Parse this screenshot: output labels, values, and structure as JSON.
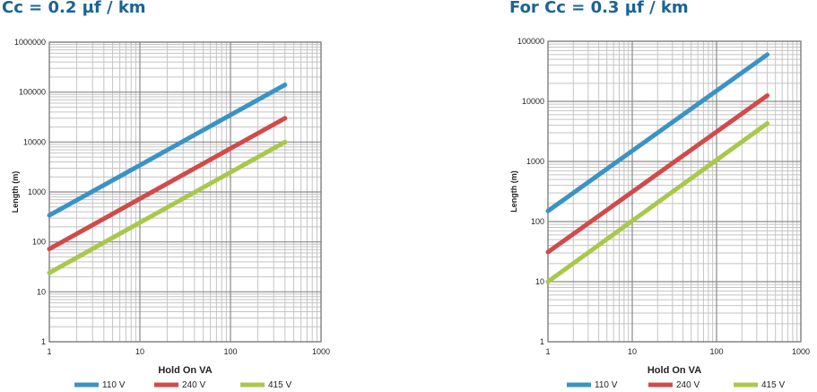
{
  "chart_data": [
    {
      "type": "line",
      "title": "Cc = 0.2 µf / km",
      "xlabel": "Hold On VA",
      "ylabel": "Length (m)",
      "x_scale": "log",
      "y_scale": "log",
      "xlim": [
        1,
        1000
      ],
      "ylim": [
        1,
        1000000
      ],
      "x_ticks": [
        "1",
        "10",
        "100",
        "1000"
      ],
      "y_ticks": [
        "1",
        "10",
        "100",
        "1000",
        "10000",
        "100000",
        "1000000"
      ],
      "grid": true,
      "legend_position": "bottom",
      "series": [
        {
          "name": "110 V",
          "color": "#3a93c4",
          "x": [
            1,
            400
          ],
          "y": [
            340,
            140000
          ]
        },
        {
          "name": "240 V",
          "color": "#d04b4b",
          "x": [
            1,
            400
          ],
          "y": [
            72,
            30000
          ]
        },
        {
          "name": "415 V",
          "color": "#a9c84b",
          "x": [
            1,
            400
          ],
          "y": [
            24,
            10000
          ]
        }
      ]
    },
    {
      "type": "line",
      "title": "For Cc = 0.3 µf / km",
      "xlabel": "Hold On VA",
      "ylabel": "Length (m)",
      "x_scale": "log",
      "y_scale": "log",
      "xlim": [
        1,
        1000
      ],
      "ylim": [
        1,
        100000
      ],
      "x_ticks": [
        "1",
        "10",
        "100",
        "1000"
      ],
      "y_ticks": [
        "1",
        "10",
        "100",
        "1000",
        "10000",
        "100000"
      ],
      "grid": true,
      "legend_position": "bottom",
      "series": [
        {
          "name": "110 V",
          "color": "#3a93c4",
          "x": [
            1,
            400
          ],
          "y": [
            150,
            60000
          ]
        },
        {
          "name": "240 V",
          "color": "#d04b4b",
          "x": [
            1,
            400
          ],
          "y": [
            31,
            12500
          ]
        },
        {
          "name": "415 V",
          "color": "#a9c84b",
          "x": [
            1,
            400
          ],
          "y": [
            10,
            4300
          ]
        }
      ]
    }
  ]
}
